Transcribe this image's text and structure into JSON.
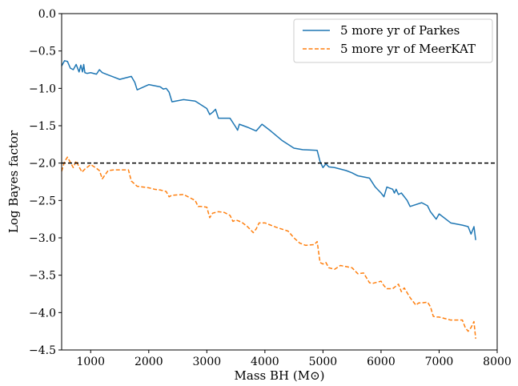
{
  "chart_data": {
    "type": "line",
    "xlabel": "Mass BH (M⊙)",
    "ylabel": "Log Bayes factor",
    "xlim": [
      500,
      8000
    ],
    "ylim": [
      -4.5,
      0.0
    ],
    "xticks": [
      1000,
      2000,
      3000,
      4000,
      5000,
      6000,
      7000,
      8000
    ],
    "xtick_labels": [
      "1000",
      "2000",
      "3000",
      "4000",
      "5000",
      "6000",
      "7000",
      "8000"
    ],
    "yticks": [
      0.0,
      -0.5,
      -1.0,
      -1.5,
      -2.0,
      -2.5,
      -3.0,
      -3.5,
      -4.0,
      -4.5
    ],
    "ytick_labels": [
      "0.0",
      "−0.5",
      "−1.0",
      "−1.5",
      "−2.0",
      "−2.5",
      "−3.0",
      "−3.5",
      "−4.0",
      "−4.5"
    ],
    "grid": false,
    "legend_position": "top-right",
    "reference_line": {
      "y": -2.0,
      "style": "dashed",
      "color": "#000000"
    },
    "series": [
      {
        "name": "5 more yr of Parkes",
        "color": "#1f77b4",
        "style": "solid",
        "x": [
          500,
          550,
          600,
          650,
          700,
          750,
          800,
          830,
          860,
          880,
          900,
          940,
          1000,
          1100,
          1150,
          1200,
          1300,
          1400,
          1500,
          1600,
          1700,
          1760,
          1800,
          2000,
          2200,
          2250,
          2300,
          2350,
          2400,
          2600,
          2800,
          2900,
          3000,
          3050,
          3100,
          3150,
          3200,
          3400,
          3500,
          3530,
          3560,
          3700,
          3850,
          3950,
          4100,
          4300,
          4500,
          4650,
          4900,
          4950,
          5000,
          5050,
          5100,
          5200,
          5400,
          5500,
          5600,
          5800,
          5900,
          6000,
          6050,
          6100,
          6200,
          6230,
          6260,
          6300,
          6350,
          6450,
          6500,
          6700,
          6800,
          6850,
          6900,
          6950,
          7000,
          7200,
          7400,
          7500,
          7550,
          7600,
          7630
        ],
        "y": [
          -0.7,
          -0.63,
          -0.64,
          -0.73,
          -0.75,
          -0.68,
          -0.78,
          -0.69,
          -0.78,
          -0.68,
          -0.79,
          -0.8,
          -0.79,
          -0.81,
          -0.75,
          -0.79,
          -0.82,
          -0.85,
          -0.88,
          -0.86,
          -0.84,
          -0.92,
          -1.02,
          -0.95,
          -0.98,
          -1.01,
          -1.0,
          -1.05,
          -1.18,
          -1.15,
          -1.17,
          -1.22,
          -1.27,
          -1.35,
          -1.32,
          -1.28,
          -1.4,
          -1.4,
          -1.52,
          -1.56,
          -1.48,
          -1.52,
          -1.57,
          -1.48,
          -1.57,
          -1.7,
          -1.8,
          -1.82,
          -1.83,
          -1.98,
          -2.06,
          -2.01,
          -2.05,
          -2.06,
          -2.1,
          -2.13,
          -2.17,
          -2.2,
          -2.32,
          -2.4,
          -2.45,
          -2.32,
          -2.35,
          -2.4,
          -2.35,
          -2.42,
          -2.4,
          -2.5,
          -2.58,
          -2.53,
          -2.57,
          -2.65,
          -2.7,
          -2.75,
          -2.68,
          -2.8,
          -2.83,
          -2.85,
          -2.95,
          -2.85,
          -3.03
        ]
      },
      {
        "name": "5 more yr of MeerKAT",
        "color": "#ff7f0e",
        "style": "dashed",
        "x": [
          500,
          550,
          600,
          650,
          700,
          750,
          800,
          850,
          900,
          1000,
          1100,
          1150,
          1200,
          1300,
          1400,
          1500,
          1600,
          1650,
          1700,
          1800,
          2000,
          2100,
          2200,
          2300,
          2350,
          2400,
          2600,
          2700,
          2800,
          2850,
          2900,
          3000,
          3050,
          3100,
          3200,
          3300,
          3400,
          3450,
          3500,
          3600,
          3700,
          3800,
          3850,
          3900,
          4000,
          4200,
          4400,
          4500,
          4600,
          4700,
          4850,
          4900,
          4950,
          5000,
          5050,
          5100,
          5200,
          5300,
          5500,
          5550,
          5600,
          5700,
          5800,
          5850,
          6000,
          6050,
          6100,
          6200,
          6300,
          6350,
          6400,
          6500,
          6600,
          6650,
          6700,
          6800,
          6850,
          6900,
          6950,
          7000,
          7200,
          7400,
          7450,
          7500,
          7550,
          7600,
          7630
        ],
        "y": [
          -2.11,
          -1.98,
          -1.92,
          -1.99,
          -2.06,
          -1.97,
          -2.05,
          -2.12,
          -2.08,
          -2.02,
          -2.07,
          -2.1,
          -2.21,
          -2.1,
          -2.09,
          -2.09,
          -2.09,
          -2.09,
          -2.24,
          -2.31,
          -2.33,
          -2.35,
          -2.36,
          -2.38,
          -2.45,
          -2.43,
          -2.42,
          -2.46,
          -2.5,
          -2.58,
          -2.58,
          -2.59,
          -2.73,
          -2.67,
          -2.65,
          -2.66,
          -2.7,
          -2.78,
          -2.76,
          -2.79,
          -2.85,
          -2.93,
          -2.88,
          -2.8,
          -2.8,
          -2.86,
          -2.91,
          -3.0,
          -3.07,
          -3.1,
          -3.09,
          -3.05,
          -3.33,
          -3.35,
          -3.33,
          -3.4,
          -3.42,
          -3.37,
          -3.4,
          -3.44,
          -3.48,
          -3.47,
          -3.6,
          -3.61,
          -3.58,
          -3.64,
          -3.68,
          -3.68,
          -3.62,
          -3.72,
          -3.67,
          -3.8,
          -3.9,
          -3.87,
          -3.87,
          -3.86,
          -3.92,
          -4.05,
          -4.06,
          -4.06,
          -4.1,
          -4.1,
          -4.2,
          -4.25,
          -4.2,
          -4.12,
          -4.35
        ]
      }
    ]
  }
}
